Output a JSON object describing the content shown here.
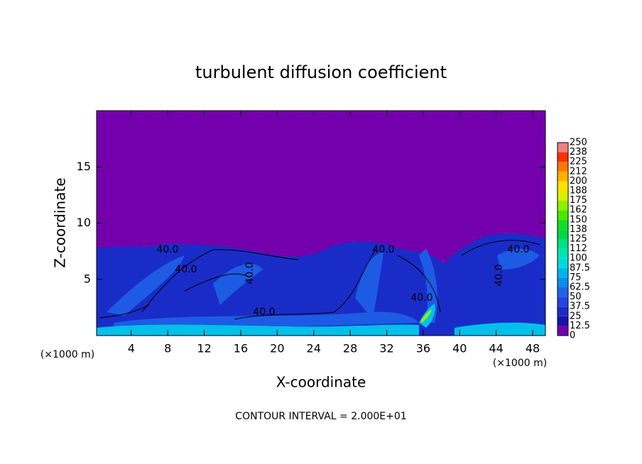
{
  "chart_data": {
    "type": "contour",
    "title": "turbulent diffusion coefficient",
    "x_label": "X-coordinate",
    "y_label": "Z-coordinate",
    "x_unit": "(×1000 m)",
    "y_unit": "(×1000 m)",
    "footer": "CONTOUR INTERVAL = 2.000E+01",
    "xlim": [
      0.2,
      49.4
    ],
    "ylim": [
      0,
      20
    ],
    "xticks": [
      4,
      8,
      12,
      16,
      20,
      24,
      28,
      32,
      36,
      40,
      44,
      48
    ],
    "yticks": [
      5,
      10,
      15
    ],
    "contour_labels": [
      "40.0",
      "40.0",
      "40.0",
      "40.0",
      "40.0",
      "40.0",
      "40.0",
      "40.0"
    ],
    "colorbar": {
      "levels": [
        0,
        12.5,
        25,
        37.5,
        50,
        62.5,
        75,
        87.5,
        100,
        112,
        125,
        138,
        150,
        162,
        175,
        188,
        200,
        212,
        225,
        238,
        250
      ],
      "colors": [
        "#7300ac",
        "#1c10a8",
        "#1a2cc8",
        "#2046e0",
        "#1e64ea",
        "#0a8ef0",
        "#00b4ec",
        "#00d8e0",
        "#00e6b0",
        "#00e080",
        "#00d848",
        "#10e020",
        "#48e800",
        "#90f000",
        "#d8f000",
        "#ffe000",
        "#ffb000",
        "#ff7800",
        "#ff3000",
        "#f08080"
      ]
    }
  }
}
